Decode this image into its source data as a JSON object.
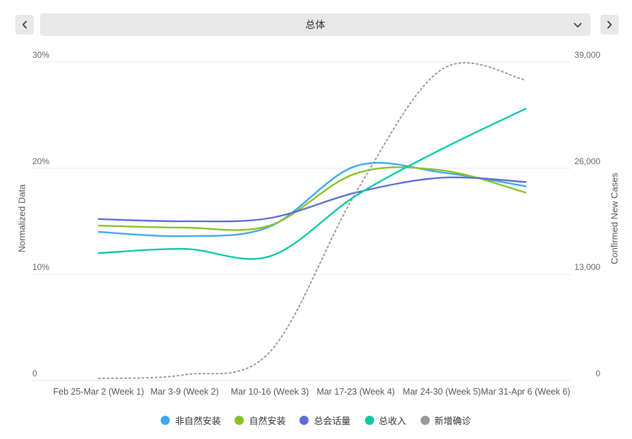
{
  "header": {
    "dropdown_value": "总体",
    "icons": {
      "prev": "chevron-left-icon",
      "next": "chevron-right-icon",
      "dropdown": "chevron-down-icon"
    }
  },
  "chart_data": {
    "type": "line",
    "x_categories": [
      "Feb 25-Mar 2 (Week 1)",
      "Mar 3-9 (Week 2)",
      "Mar 10-16 (Week 3)",
      "Mar 17-23 (Week 4)",
      "Mar 24-30 (Week 5)",
      "Mar 31-Apr 6 (Week 6)"
    ],
    "left_axis": {
      "label": "Normalized Data",
      "tick_labels": [
        "0",
        "10%",
        "20%",
        "30%"
      ],
      "tick_values": [
        0,
        10,
        20,
        30
      ],
      "range": [
        0,
        30
      ]
    },
    "right_axis": {
      "label": "Confirmed New Cases",
      "tick_labels": [
        "0",
        "13,000",
        "26,000",
        "39,000"
      ],
      "tick_values": [
        0,
        13000,
        26000,
        39000
      ],
      "range": [
        0,
        39000
      ]
    },
    "grid": true,
    "legend_position": "bottom",
    "series": [
      {
        "name": "非自然安装",
        "axis": "left",
        "style": "solid",
        "color": "#3da9ee",
        "values": [
          14.0,
          13.6,
          14.5,
          20.2,
          19.6,
          18.3
        ]
      },
      {
        "name": "自然安装",
        "axis": "left",
        "style": "solid",
        "color": "#8bc125",
        "values": [
          14.6,
          14.4,
          14.6,
          19.5,
          19.8,
          17.7
        ]
      },
      {
        "name": "总会话量",
        "axis": "left",
        "style": "solid",
        "color": "#5f6cd2",
        "values": [
          15.2,
          15.0,
          15.3,
          17.7,
          19.1,
          18.7
        ]
      },
      {
        "name": "总收入",
        "axis": "left",
        "style": "solid",
        "color": "#0bc9a6",
        "values": [
          12.0,
          12.4,
          11.7,
          17.4,
          21.8,
          25.6
        ]
      },
      {
        "name": "新增确诊",
        "axis": "right",
        "style": "dotted",
        "color": "#999999",
        "values": [
          250,
          700,
          3500,
          23000,
          38100,
          36800
        ]
      }
    ]
  }
}
